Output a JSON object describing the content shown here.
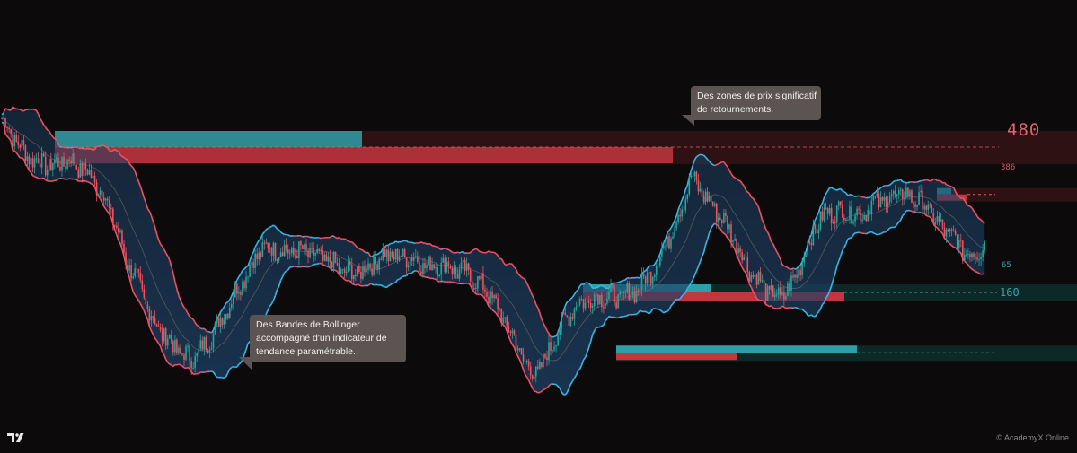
{
  "chart_data": {
    "type": "candlestick",
    "seed": 7,
    "price_path": [
      540,
      505,
      470,
      455,
      445,
      448,
      456,
      440,
      420,
      385,
      330,
      255,
      210,
      150,
      110,
      85,
      60,
      55,
      80,
      115,
      158,
      200,
      240,
      275,
      278,
      272,
      268,
      270,
      258,
      250,
      232,
      226,
      232,
      250,
      265,
      258,
      262,
      248,
      240,
      246,
      234,
      228,
      210,
      190,
      150,
      110,
      60,
      20,
      45,
      100,
      138,
      165,
      172,
      180,
      176,
      178,
      190,
      212,
      250,
      295,
      350,
      420,
      390,
      360,
      330,
      290,
      240,
      210,
      185,
      178,
      205,
      262,
      320,
      348,
      352,
      350,
      345,
      365,
      375,
      383,
      385,
      376,
      358,
      320,
      305,
      275,
      262,
      288
    ],
    "colors": {
      "up": "#26a69a",
      "down": "#f0515d",
      "band_upper": "#f05063",
      "band_lower_up": "#36b8e6",
      "band_lower_down": "#f05063",
      "band_fill": "#1d3f63",
      "basis": "#6e6e6e",
      "zone_teal": "#2e9fa8",
      "zone_red": "#c2363f",
      "zone_dark_red": "#3a1416",
      "zone_dark_teal": "#0c2b2a"
    },
    "zones": [
      {
        "price": 480,
        "label": "480",
        "side": "resistance"
      },
      {
        "price": 386,
        "label": "386",
        "side": "resistance"
      },
      {
        "price": 65,
        "label": "65",
        "side": "support"
      },
      {
        "price": 160,
        "label": "160",
        "side": "support"
      }
    ]
  },
  "annotations": {
    "zones_note": [
      "Des zones de prix significatif",
      "de retournements."
    ],
    "bollinger_note": [
      "Des Bandes de Bollinger",
      "accompagné d'un indicateur de",
      "tendance paramétrable."
    ]
  },
  "labels": {
    "level_480": "480",
    "level_386": "386",
    "level_65": "65",
    "level_160": "160"
  },
  "footer": {
    "copyright": "© AcademyX Online",
    "logo": "tradingview-logo-icon"
  }
}
